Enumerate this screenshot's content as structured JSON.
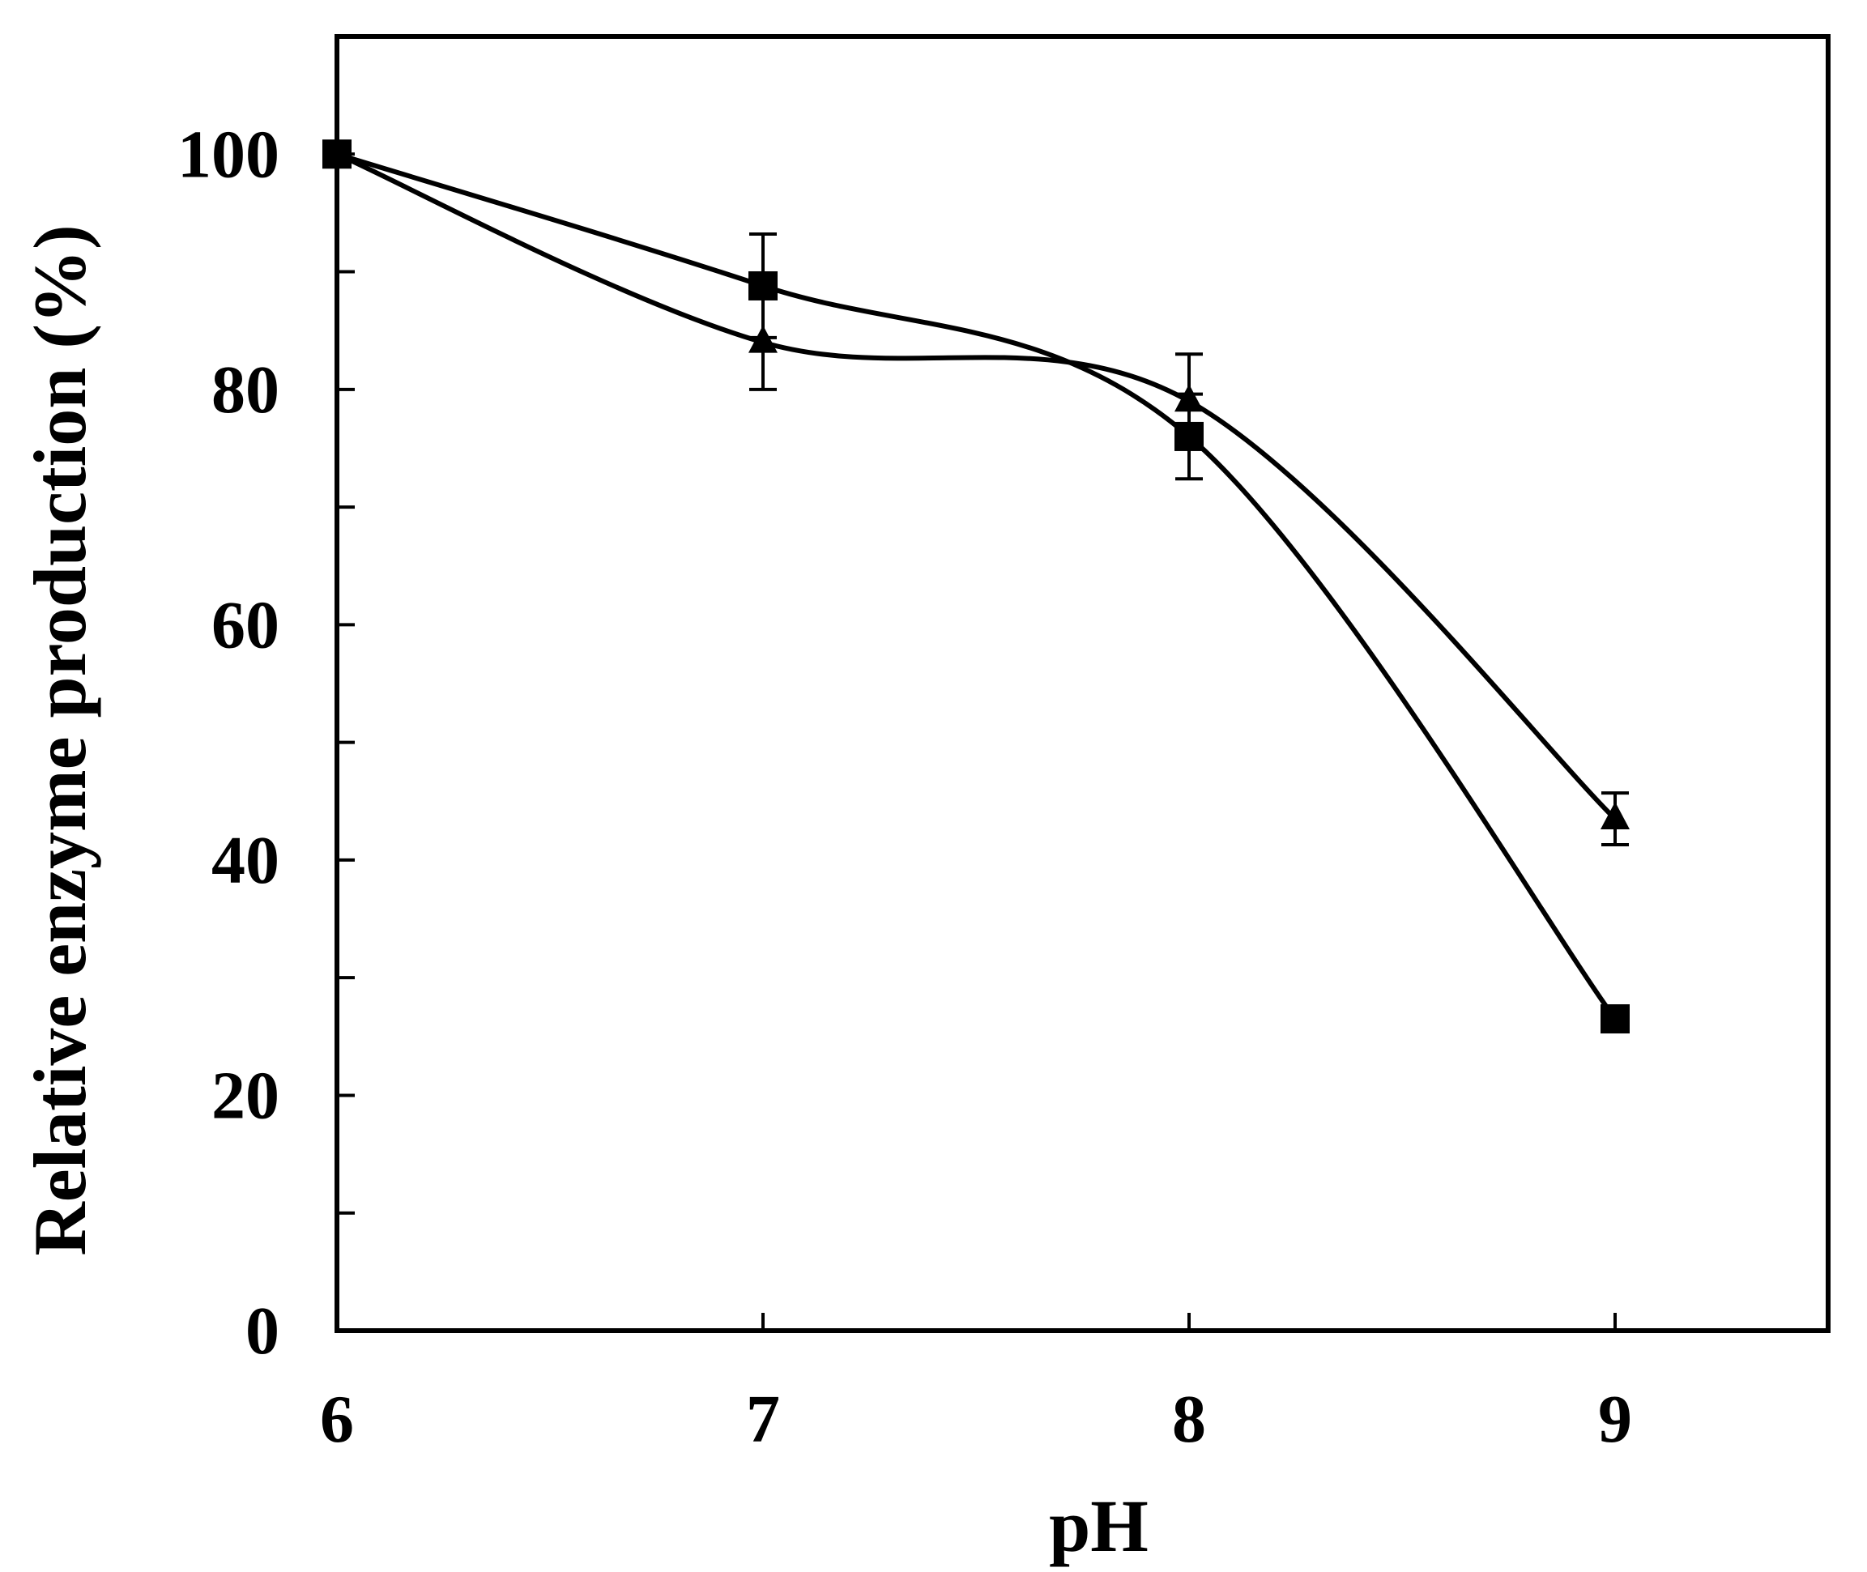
{
  "chart_data": {
    "type": "line",
    "title": "",
    "xlabel": "pH",
    "ylabel": "Relative enzyme production (%)",
    "xlim": [
      6,
      9.5
    ],
    "ylim": [
      0,
      110
    ],
    "x_ticks": [
      "6",
      "7",
      "8",
      "9"
    ],
    "y_ticks": [
      "0",
      "20",
      "40",
      "60",
      "80",
      "100"
    ],
    "grid": false,
    "legend": "none",
    "x": [
      6,
      7,
      8,
      9
    ],
    "series": [
      {
        "name": "square",
        "marker": "square",
        "values": [
          100,
          88.8,
          76,
          26.5
        ],
        "error": [
          0,
          4.4,
          3.6,
          0
        ]
      },
      {
        "name": "triangle",
        "marker": "triangle",
        "values": [
          100,
          84,
          79,
          43.5
        ],
        "error": [
          0,
          4,
          4,
          2.2
        ]
      }
    ],
    "line_color": "#000000"
  }
}
